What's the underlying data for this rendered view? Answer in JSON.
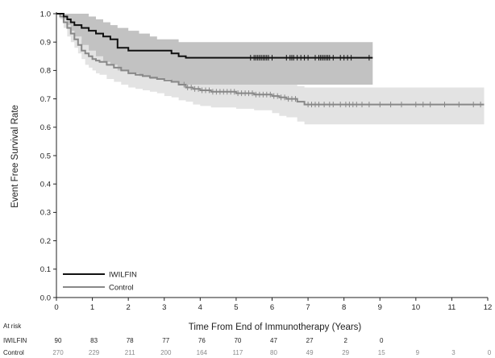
{
  "chart_data": {
    "type": "line",
    "step": true,
    "xlabel": "Time From End of Immunotherapy (Years)",
    "ylabel": "Event Free Survival Rate",
    "xlim": [
      0,
      12
    ],
    "ylim": [
      0,
      1.0
    ],
    "x_ticks": [
      0,
      1,
      2,
      3,
      4,
      5,
      6,
      7,
      8,
      9,
      10,
      11,
      12
    ],
    "y_ticks": [
      "0.0",
      "0.1",
      "0.2",
      "0.3",
      "0.4",
      "0.5",
      "0.6",
      "0.7",
      "0.8",
      "0.9",
      "1.0"
    ],
    "grid": false,
    "legend": "bottom-left",
    "colors": {
      "iwilfin": "#111111",
      "control": "#888888",
      "iwilfin_band": "#c2c2c2",
      "control_band": "#e3e3e3"
    },
    "series": [
      {
        "name": "IWILFIN",
        "x": [
          0,
          0.2,
          0.3,
          0.4,
          0.5,
          0.7,
          0.9,
          1.1,
          1.3,
          1.5,
          1.7,
          2.0,
          2.3,
          2.6,
          2.8,
          3.0,
          3.2,
          3.4,
          3.6,
          8.8
        ],
        "y": [
          1.0,
          0.99,
          0.98,
          0.97,
          0.96,
          0.95,
          0.94,
          0.93,
          0.92,
          0.91,
          0.88,
          0.87,
          0.87,
          0.87,
          0.87,
          0.87,
          0.86,
          0.85,
          0.845,
          0.845
        ],
        "ci_lower": [
          1.0,
          0.98,
          0.96,
          0.94,
          0.92,
          0.89,
          0.87,
          0.85,
          0.83,
          0.82,
          0.8,
          0.79,
          0.78,
          0.77,
          0.77,
          0.77,
          0.76,
          0.75,
          0.75,
          0.75
        ],
        "ci_upper": [
          1.0,
          1.0,
          1.0,
          1.0,
          1.0,
          1.0,
          0.99,
          0.98,
          0.97,
          0.96,
          0.95,
          0.94,
          0.93,
          0.92,
          0.91,
          0.91,
          0.91,
          0.9,
          0.9,
          0.9
        ],
        "censor_x": [
          5.4,
          5.5,
          5.55,
          5.6,
          5.65,
          5.7,
          5.75,
          5.8,
          5.85,
          5.9,
          6.0,
          6.4,
          6.5,
          6.55,
          6.6,
          6.7,
          6.8,
          6.9,
          7.0,
          7.2,
          7.3,
          7.35,
          7.4,
          7.45,
          7.5,
          7.55,
          7.6,
          7.7,
          7.9,
          8.0,
          8.1,
          8.2,
          8.7
        ]
      },
      {
        "name": "Control",
        "x": [
          0,
          0.1,
          0.2,
          0.3,
          0.4,
          0.5,
          0.6,
          0.7,
          0.8,
          0.9,
          1.0,
          1.1,
          1.2,
          1.4,
          1.6,
          1.8,
          2.0,
          2.2,
          2.4,
          2.6,
          2.8,
          3.0,
          3.2,
          3.4,
          3.6,
          3.8,
          4.0,
          4.3,
          5.0,
          5.5,
          6.0,
          6.2,
          6.4,
          6.7,
          6.9,
          11.9
        ],
        "y": [
          1.0,
          0.99,
          0.97,
          0.95,
          0.93,
          0.91,
          0.89,
          0.87,
          0.86,
          0.85,
          0.84,
          0.835,
          0.83,
          0.82,
          0.81,
          0.8,
          0.79,
          0.785,
          0.78,
          0.775,
          0.77,
          0.765,
          0.76,
          0.75,
          0.74,
          0.735,
          0.73,
          0.725,
          0.72,
          0.715,
          0.71,
          0.705,
          0.7,
          0.69,
          0.68,
          0.68
        ],
        "ci_lower": [
          1.0,
          0.98,
          0.95,
          0.92,
          0.9,
          0.88,
          0.86,
          0.84,
          0.82,
          0.81,
          0.8,
          0.79,
          0.785,
          0.77,
          0.76,
          0.75,
          0.74,
          0.735,
          0.73,
          0.725,
          0.72,
          0.71,
          0.705,
          0.695,
          0.69,
          0.68,
          0.675,
          0.67,
          0.665,
          0.66,
          0.65,
          0.64,
          0.635,
          0.62,
          0.61,
          0.61
        ],
        "ci_upper": [
          1.0,
          1.0,
          0.99,
          0.98,
          0.96,
          0.95,
          0.93,
          0.91,
          0.9,
          0.89,
          0.88,
          0.875,
          0.87,
          0.86,
          0.85,
          0.845,
          0.84,
          0.835,
          0.83,
          0.825,
          0.82,
          0.815,
          0.81,
          0.8,
          0.79,
          0.785,
          0.78,
          0.775,
          0.77,
          0.765,
          0.76,
          0.76,
          0.755,
          0.745,
          0.74,
          0.74
        ],
        "censor_x": [
          3.55,
          3.65,
          3.75,
          3.85,
          3.95,
          4.05,
          4.15,
          4.25,
          4.35,
          4.45,
          4.55,
          4.65,
          4.75,
          4.85,
          4.95,
          5.05,
          5.15,
          5.25,
          5.35,
          5.45,
          5.55,
          5.65,
          5.75,
          5.85,
          5.95,
          6.05,
          6.15,
          6.25,
          6.35,
          6.45,
          6.55,
          6.65,
          7.0,
          7.1,
          7.2,
          7.3,
          7.45,
          7.6,
          7.7,
          7.9,
          8.05,
          8.15,
          8.25,
          8.35,
          8.5,
          8.7,
          9.0,
          9.3,
          9.6,
          10.0,
          10.2,
          10.4,
          10.8,
          11.2,
          11.6,
          11.8
        ]
      }
    ],
    "legend_entries": [
      "IWILFIN",
      "Control"
    ],
    "at_risk": {
      "title": "At risk",
      "times": [
        0,
        1,
        2,
        3,
        4,
        5,
        6,
        7,
        8,
        9,
        10,
        11,
        12
      ],
      "rows": [
        {
          "name": "IWILFIN",
          "values": [
            "90",
            "83",
            "78",
            "77",
            "76",
            "70",
            "47",
            "27",
            "2",
            "0",
            "",
            "",
            ""
          ]
        },
        {
          "name": "Control",
          "values": [
            "270",
            "229",
            "211",
            "200",
            "164",
            "117",
            "80",
            "49",
            "29",
            "15",
            "9",
            "3",
            "0"
          ]
        }
      ]
    }
  }
}
